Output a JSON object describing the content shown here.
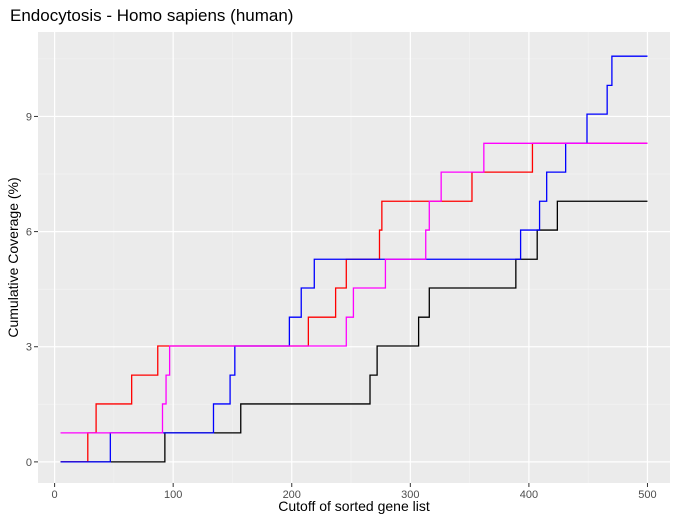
{
  "chart_data": {
    "type": "line",
    "title": "Endocytosis - Homo sapiens (human)",
    "xlabel": "Cutoff of sorted gene list",
    "ylabel": "Cumulative Coverage (%)",
    "xlim": [
      -14,
      519
    ],
    "ylim": [
      -0.55,
      11.2
    ],
    "xticks": [
      0,
      100,
      200,
      300,
      400,
      500
    ],
    "yticks": [
      0,
      3,
      6,
      9
    ],
    "xtick_labels": [
      "0",
      "100",
      "200",
      "300",
      "400",
      "500"
    ],
    "ytick_labels": [
      "0",
      "3",
      "6",
      "9"
    ],
    "grid": true,
    "legend": "none",
    "series": [
      {
        "color": "#000000",
        "points": [
          [
            5,
            0
          ],
          [
            93,
            0
          ],
          [
            93,
            0.755
          ],
          [
            157,
            0.755
          ],
          [
            157,
            1.51
          ],
          [
            266,
            1.51
          ],
          [
            266,
            2.26
          ],
          [
            272,
            2.26
          ],
          [
            272,
            3.02
          ],
          [
            307,
            3.02
          ],
          [
            307,
            3.77
          ],
          [
            316,
            3.77
          ],
          [
            316,
            4.53
          ],
          [
            389,
            4.53
          ],
          [
            389,
            5.28
          ],
          [
            407,
            5.28
          ],
          [
            407,
            6.04
          ],
          [
            424,
            6.04
          ],
          [
            424,
            6.79
          ],
          [
            500,
            6.79
          ]
        ]
      },
      {
        "color": "#ff0000",
        "points": [
          [
            5,
            0
          ],
          [
            28,
            0
          ],
          [
            28,
            0.755
          ],
          [
            35,
            0.755
          ],
          [
            35,
            1.51
          ],
          [
            65,
            1.51
          ],
          [
            65,
            2.26
          ],
          [
            87,
            2.26
          ],
          [
            87,
            3.02
          ],
          [
            214,
            3.02
          ],
          [
            214,
            3.77
          ],
          [
            237,
            3.77
          ],
          [
            237,
            4.53
          ],
          [
            246,
            4.53
          ],
          [
            246,
            5.28
          ],
          [
            274,
            5.28
          ],
          [
            274,
            6.04
          ],
          [
            276,
            6.04
          ],
          [
            276,
            6.79
          ],
          [
            352,
            6.79
          ],
          [
            352,
            7.55
          ],
          [
            403,
            7.55
          ],
          [
            403,
            8.3
          ],
          [
            500,
            8.3
          ]
        ]
      },
      {
        "color": "#0000ff",
        "points": [
          [
            5,
            0
          ],
          [
            47,
            0
          ],
          [
            47,
            0.755
          ],
          [
            134,
            0.755
          ],
          [
            134,
            1.51
          ],
          [
            148,
            1.51
          ],
          [
            148,
            2.26
          ],
          [
            152,
            2.26
          ],
          [
            152,
            3.02
          ],
          [
            198,
            3.02
          ],
          [
            198,
            3.77
          ],
          [
            208,
            3.77
          ],
          [
            208,
            4.53
          ],
          [
            219,
            4.53
          ],
          [
            219,
            5.28
          ],
          [
            393,
            5.28
          ],
          [
            393,
            6.04
          ],
          [
            409,
            6.04
          ],
          [
            409,
            6.79
          ],
          [
            415,
            6.79
          ],
          [
            415,
            7.55
          ],
          [
            431,
            7.55
          ],
          [
            431,
            8.3
          ],
          [
            449,
            8.3
          ],
          [
            449,
            9.06
          ],
          [
            466,
            9.06
          ],
          [
            466,
            9.81
          ],
          [
            470,
            9.81
          ],
          [
            470,
            10.57
          ],
          [
            500,
            10.57
          ]
        ]
      },
      {
        "color": "#ff00ff",
        "points": [
          [
            5,
            0.755
          ],
          [
            91,
            0.755
          ],
          [
            91,
            1.51
          ],
          [
            94,
            1.51
          ],
          [
            94,
            2.26
          ],
          [
            97,
            2.26
          ],
          [
            97,
            3.02
          ],
          [
            246,
            3.02
          ],
          [
            246,
            3.77
          ],
          [
            252,
            3.77
          ],
          [
            252,
            4.53
          ],
          [
            279,
            4.53
          ],
          [
            279,
            5.28
          ],
          [
            313,
            5.28
          ],
          [
            313,
            6.04
          ],
          [
            316,
            6.04
          ],
          [
            316,
            6.79
          ],
          [
            326,
            6.79
          ],
          [
            326,
            7.55
          ],
          [
            362,
            7.55
          ],
          [
            362,
            8.3
          ],
          [
            500,
            8.3
          ]
        ]
      }
    ]
  }
}
